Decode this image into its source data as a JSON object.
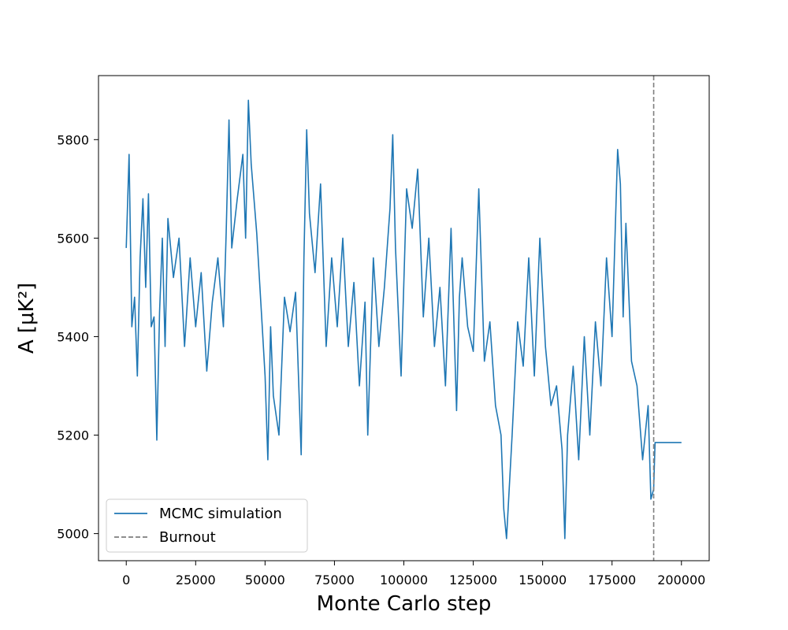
{
  "chart_data": {
    "type": "line",
    "title": "",
    "xlabel": "Monte Carlo step",
    "ylabel": "A [μK²]",
    "xlim": [
      -10000,
      210000
    ],
    "ylim": [
      4945,
      5930
    ],
    "grid": false,
    "legend_position": "lower-left",
    "xticks": [
      0,
      25000,
      50000,
      75000,
      100000,
      125000,
      150000,
      175000,
      200000
    ],
    "xtick_labels": [
      "0",
      "25000",
      "50000",
      "75000",
      "100000",
      "125000",
      "150000",
      "175000",
      "200000"
    ],
    "yticks": [
      5000,
      5200,
      5400,
      5600,
      5800
    ],
    "ytick_labels": [
      "5000",
      "5200",
      "5400",
      "5600",
      "5800"
    ],
    "series": [
      {
        "name": "MCMC simulation",
        "color": "#1f77b4",
        "style": "solid",
        "x": [
          0,
          1000,
          2000,
          3000,
          4000,
          5000,
          6000,
          7000,
          8000,
          9000,
          10000,
          11000,
          12000,
          13000,
          14000,
          15000,
          17000,
          19000,
          21000,
          23000,
          25000,
          27000,
          29000,
          31000,
          33000,
          35000,
          36000,
          37000,
          38000,
          40000,
          42000,
          43000,
          44000,
          45000,
          47000,
          49000,
          50000,
          51000,
          52000,
          53000,
          55000,
          57000,
          59000,
          61000,
          63000,
          64000,
          65000,
          66000,
          68000,
          70000,
          72000,
          74000,
          76000,
          78000,
          80000,
          82000,
          84000,
          86000,
          87000,
          89000,
          91000,
          93000,
          95000,
          96000,
          97000,
          99000,
          101000,
          103000,
          105000,
          107000,
          109000,
          111000,
          113000,
          115000,
          117000,
          119000,
          120000,
          121000,
          123000,
          125000,
          127000,
          129000,
          131000,
          133000,
          135000,
          136000,
          137000,
          139000,
          141000,
          143000,
          145000,
          147000,
          149000,
          151000,
          153000,
          155000,
          157000,
          158000,
          159000,
          161000,
          163000,
          165000,
          167000,
          169000,
          171000,
          173000,
          175000,
          177000,
          178000,
          179000,
          180000,
          182000,
          184000,
          186000,
          188000,
          189000,
          190000,
          190500,
          200000
        ],
        "y": [
          5580,
          5770,
          5420,
          5480,
          5320,
          5560,
          5680,
          5500,
          5690,
          5420,
          5440,
          5190,
          5450,
          5600,
          5380,
          5640,
          5520,
          5600,
          5380,
          5560,
          5420,
          5530,
          5330,
          5470,
          5560,
          5420,
          5610,
          5840,
          5580,
          5680,
          5770,
          5600,
          5880,
          5750,
          5610,
          5420,
          5320,
          5150,
          5420,
          5280,
          5200,
          5480,
          5410,
          5490,
          5160,
          5560,
          5820,
          5650,
          5530,
          5710,
          5380,
          5560,
          5420,
          5600,
          5380,
          5510,
          5300,
          5470,
          5200,
          5560,
          5380,
          5500,
          5660,
          5810,
          5580,
          5320,
          5700,
          5620,
          5740,
          5440,
          5600,
          5380,
          5500,
          5300,
          5620,
          5250,
          5480,
          5560,
          5420,
          5370,
          5700,
          5350,
          5430,
          5260,
          5200,
          5050,
          4990,
          5200,
          5430,
          5340,
          5560,
          5320,
          5600,
          5380,
          5260,
          5300,
          5170,
          4990,
          5200,
          5340,
          5150,
          5400,
          5200,
          5430,
          5300,
          5560,
          5400,
          5780,
          5710,
          5440,
          5630,
          5350,
          5300,
          5150,
          5260,
          5070,
          5090,
          5185,
          5185
        ]
      },
      {
        "name": "Burnout",
        "color": "#7f7f7f",
        "style": "dashed",
        "x_value": 190000
      }
    ]
  }
}
